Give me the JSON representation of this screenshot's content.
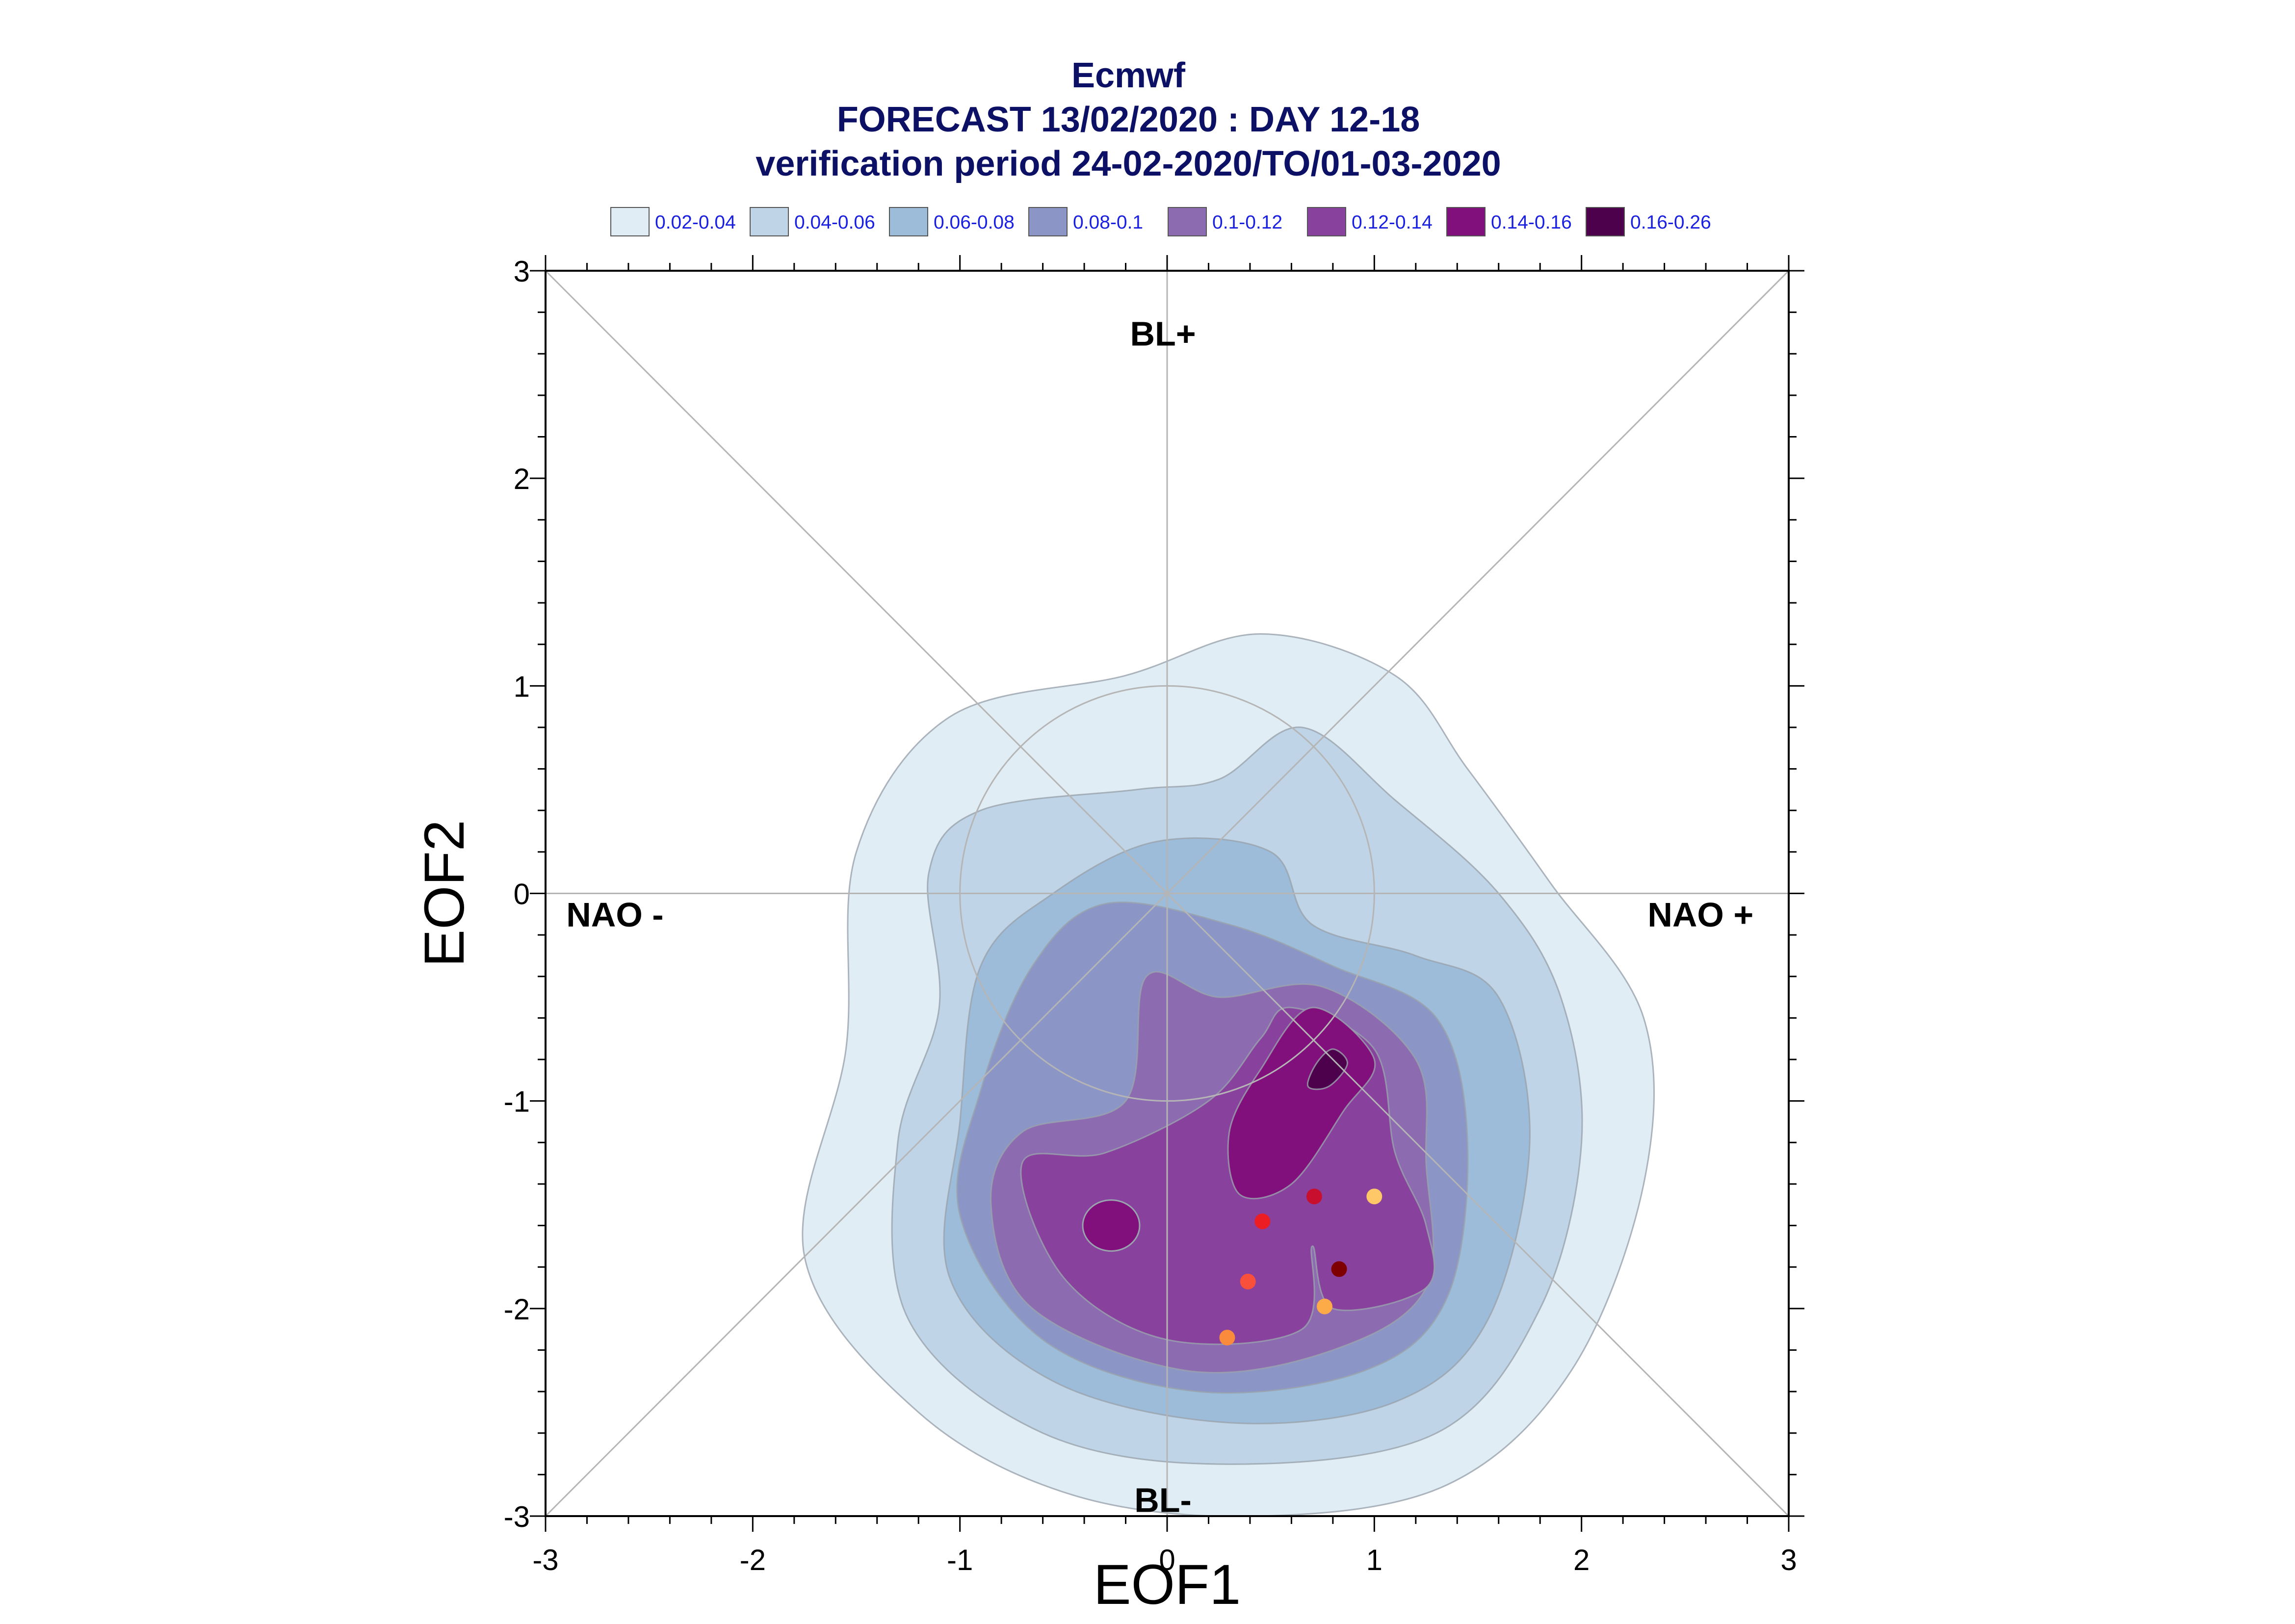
{
  "title_lines": [
    "Ecmwf",
    "FORECAST 13/02/2020 : DAY 12-18",
    "verification period 24-02-2020/TO/01-03-2020"
  ],
  "legend": [
    {
      "label": "0.02-0.04",
      "color": "#e1edf4"
    },
    {
      "label": "0.04-0.06",
      "color": "#bfd4e6"
    },
    {
      "label": "0.06-0.08",
      "color": "#9dbcda"
    },
    {
      "label": "0.08-0.1",
      "color": "#8c96c6"
    },
    {
      "label": "0.1-0.12",
      "color": "#8c6bb1"
    },
    {
      "label": "0.12-0.14",
      "color": "#88419d"
    },
    {
      "label": "0.14-0.16",
      "color": "#810f7c"
    },
    {
      "label": "0.16-0.26",
      "color": "#4d004b"
    }
  ],
  "chart_data": {
    "type": "scatter",
    "title": "Ecmwf FORECAST 13/02/2020 : DAY 12-18 verification period 24-02-2020/TO/01-03-2020",
    "xlabel": "EOF1",
    "ylabel": "EOF2",
    "xlim": [
      -3,
      3
    ],
    "ylim": [
      -3,
      3
    ],
    "xticks": [
      "-3",
      "-2",
      "-1",
      "0",
      "1",
      "2",
      "3"
    ],
    "yticks": [
      "-3",
      "-2",
      "-1",
      "0",
      "1",
      "2",
      "3"
    ],
    "region_labels": {
      "top": "BL+",
      "bottom": "BL-",
      "left": "NAO -",
      "right": "NAO +"
    },
    "reference": {
      "diagonals": true,
      "unit_circle_radius": 1,
      "grid": "axes through origin"
    },
    "density_levels": [
      {
        "range": "0.02-0.04",
        "color": "#e1edf4",
        "outline": [
          [
            0.45,
            1.25
          ],
          [
            1.1,
            1.05
          ],
          [
            1.45,
            0.6
          ],
          [
            1.85,
            0.05
          ],
          [
            2.3,
            -0.6
          ],
          [
            2.3,
            -1.4
          ],
          [
            1.95,
            -2.3
          ],
          [
            1.35,
            -2.85
          ],
          [
            0.45,
            -3.0
          ],
          [
            -0.45,
            -2.9
          ],
          [
            -1.2,
            -2.5
          ],
          [
            -1.75,
            -1.75
          ],
          [
            -1.55,
            -0.75
          ],
          [
            -1.5,
            0.2
          ],
          [
            -1.05,
            0.85
          ],
          [
            -0.2,
            1.05
          ]
        ]
      },
      {
        "range": "0.04-0.06",
        "color": "#bfd4e6",
        "outline": [
          [
            0.65,
            0.8
          ],
          [
            1.1,
            0.45
          ],
          [
            1.6,
            0.0
          ],
          [
            1.9,
            -0.5
          ],
          [
            2.0,
            -1.2
          ],
          [
            1.8,
            -2.0
          ],
          [
            1.3,
            -2.6
          ],
          [
            0.3,
            -2.75
          ],
          [
            -0.6,
            -2.6
          ],
          [
            -1.25,
            -2.05
          ],
          [
            -1.3,
            -1.2
          ],
          [
            -1.1,
            -0.55
          ],
          [
            -1.15,
            0.1
          ],
          [
            -0.9,
            0.4
          ],
          [
            -0.15,
            0.5
          ],
          [
            0.25,
            0.55
          ]
        ]
      },
      {
        "range": "0.06-0.08",
        "color": "#9dbcda",
        "outline": [
          [
            -0.05,
            0.25
          ],
          [
            0.5,
            0.2
          ],
          [
            0.7,
            -0.15
          ],
          [
            1.2,
            -0.3
          ],
          [
            1.6,
            -0.5
          ],
          [
            1.75,
            -1.2
          ],
          [
            1.55,
            -2.05
          ],
          [
            1.1,
            -2.45
          ],
          [
            0.3,
            -2.55
          ],
          [
            -0.55,
            -2.35
          ],
          [
            -1.05,
            -1.85
          ],
          [
            -1.0,
            -1.1
          ],
          [
            -0.9,
            -0.35
          ],
          [
            -0.55,
            0.0
          ]
        ]
      },
      {
        "range": "0.08-0.1",
        "color": "#8c96c6",
        "outline": [
          [
            -0.3,
            -0.05
          ],
          [
            0.3,
            -0.15
          ],
          [
            0.8,
            -0.35
          ],
          [
            1.3,
            -0.6
          ],
          [
            1.45,
            -1.2
          ],
          [
            1.35,
            -1.95
          ],
          [
            0.95,
            -2.3
          ],
          [
            0.15,
            -2.4
          ],
          [
            -0.6,
            -2.15
          ],
          [
            -1.0,
            -1.55
          ],
          [
            -0.9,
            -0.95
          ],
          [
            -0.65,
            -0.35
          ]
        ]
      },
      {
        "range": "0.1-0.12",
        "color": "#8c6bb1",
        "outline": [
          [
            -0.1,
            -0.4
          ],
          [
            0.25,
            -0.5
          ],
          [
            0.75,
            -0.45
          ],
          [
            1.2,
            -0.8
          ],
          [
            1.25,
            -1.3
          ],
          [
            1.25,
            -1.9
          ],
          [
            0.8,
            -2.2
          ],
          [
            0.1,
            -2.3
          ],
          [
            -0.65,
            -2.0
          ],
          [
            -0.85,
            -1.5
          ],
          [
            -0.7,
            -1.15
          ],
          [
            -0.2,
            -1.0
          ]
        ]
      },
      {
        "range": "0.12-0.14",
        "color": "#88419d",
        "outline": [
          [
            0.6,
            -0.55
          ],
          [
            1.0,
            -0.75
          ],
          [
            1.1,
            -1.25
          ],
          [
            1.25,
            -1.6
          ],
          [
            1.25,
            -1.9
          ],
          [
            0.8,
            -2.0
          ],
          [
            0.7,
            -1.7
          ],
          [
            0.65,
            -2.1
          ],
          [
            0.0,
            -2.15
          ],
          [
            -0.5,
            -1.85
          ],
          [
            -0.7,
            -1.3
          ],
          [
            -0.3,
            -1.25
          ],
          [
            0.2,
            -1.0
          ],
          [
            0.45,
            -0.7
          ]
        ]
      },
      {
        "range": "0.14-0.16",
        "color": "#810f7c",
        "outline": [
          [
            0.7,
            -0.55
          ],
          [
            1.0,
            -0.8
          ],
          [
            0.85,
            -1.05
          ],
          [
            0.6,
            -1.4
          ],
          [
            0.35,
            -1.45
          ],
          [
            0.3,
            -1.15
          ],
          [
            0.45,
            -0.85
          ]
        ]
      },
      {
        "range": "0.16-0.26",
        "color": "#4d004b",
        "outline": [
          [
            0.8,
            -0.75
          ],
          [
            0.87,
            -0.82
          ],
          [
            0.78,
            -0.93
          ],
          [
            0.68,
            -0.93
          ],
          [
            0.72,
            -0.82
          ]
        ]
      }
    ],
    "secondary_maximum": {
      "center": [
        -0.27,
        -1.6
      ],
      "level": "0.12-0.14"
    },
    "points": [
      {
        "x": 0.71,
        "y": -1.46,
        "color": "#c8102e"
      },
      {
        "x": 1.0,
        "y": -1.46,
        "color": "#fec868"
      },
      {
        "x": 0.46,
        "y": -1.58,
        "color": "#ed1d24"
      },
      {
        "x": 0.83,
        "y": -1.81,
        "color": "#7f0000"
      },
      {
        "x": 0.39,
        "y": -1.87,
        "color": "#f8503a"
      },
      {
        "x": 0.76,
        "y": -1.99,
        "color": "#fdaa48"
      },
      {
        "x": 0.29,
        "y": -2.14,
        "color": "#fb8b3c"
      }
    ]
  }
}
